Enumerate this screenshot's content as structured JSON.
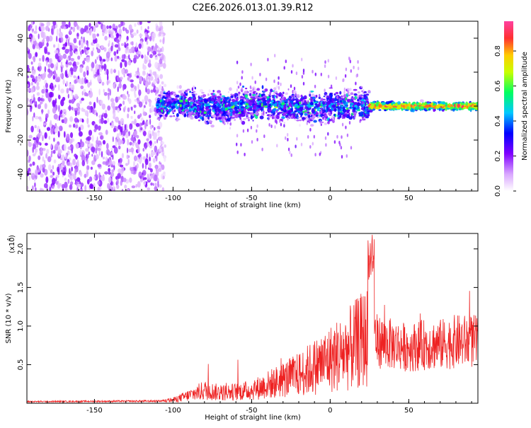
{
  "title": "C2E6.2026.013.01.39.R12",
  "chart_data": [
    {
      "type": "heatmap",
      "xlabel": "Height of straight line (km)",
      "ylabel": "Frequency (Hz)",
      "xlim": [
        -193,
        94
      ],
      "ylim": [
        -50,
        50
      ],
      "x_ticks": [
        -150,
        -100,
        -50,
        0,
        50
      ],
      "x_tick_labels": [
        "-150",
        "-100",
        "-50",
        "0",
        "50"
      ],
      "y_ticks": [
        -40,
        -20,
        0,
        20,
        40
      ],
      "y_tick_labels": [
        "-40",
        "-20",
        "0",
        "20",
        "40"
      ],
      "colorbar": {
        "label": "Normalized spectral amplitude",
        "range": [
          0,
          0.97
        ],
        "ticks": [
          0.0,
          0.2,
          0.4,
          0.6,
          0.8
        ],
        "tick_labels": [
          "0.0",
          "0.2",
          "0.4",
          "0.6",
          "0.8"
        ],
        "colors": [
          "#ffffff",
          "#d9a6ff",
          "#8000ff",
          "#0000ff",
          "#00c8ff",
          "#00ff60",
          "#c8ff00",
          "#ffcc00",
          "#ff3030",
          "#ff40a0"
        ]
      },
      "regions": [
        {
          "x_range": [
            -193,
            -105
          ],
          "freq_range": [
            -50,
            50
          ],
          "amplitude": 0.12,
          "description": "broadband noise"
        },
        {
          "x_range": [
            -110,
            25
          ],
          "center_freq": 0,
          "half_width": 8,
          "amplitude": 0.35
        },
        {
          "x_range": [
            25,
            94
          ],
          "center_freq": 0,
          "half_width": 2,
          "amplitude": 0.85
        }
      ]
    },
    {
      "type": "line",
      "xlabel": "Height of straight line (km)",
      "ylabel": "SNR (10 * v/v)",
      "multiplier_label": "(x10",
      "multiplier_exp": "4",
      "multiplier_close": ")",
      "xlim": [
        -193,
        94
      ],
      "ylim": [
        0,
        2.2
      ],
      "x_ticks": [
        -150,
        -100,
        -50,
        0,
        50
      ],
      "x_tick_labels": [
        "-150",
        "-100",
        "-50",
        "0",
        "50"
      ],
      "y_ticks": [
        0.5,
        1.0,
        1.5,
        2.0
      ],
      "y_tick_labels": [
        "0.5",
        "1.0",
        "1.5",
        "2.0"
      ],
      "color": "#ee2222",
      "envelope": {
        "x": [
          -193,
          -110,
          -100,
          -90,
          -80,
          -70,
          -60,
          -50,
          -40,
          -30,
          -20,
          -10,
          0,
          10,
          20,
          25,
          30,
          40,
          50,
          60,
          70,
          80,
          94
        ],
        "y": [
          0.03,
          0.04,
          0.06,
          0.15,
          0.25,
          0.2,
          0.22,
          0.25,
          0.35,
          0.45,
          0.55,
          0.7,
          0.85,
          1.0,
          1.2,
          1.3,
          1.0,
          0.95,
          0.9,
          0.95,
          0.95,
          1.0,
          1.0
        ]
      }
    }
  ]
}
